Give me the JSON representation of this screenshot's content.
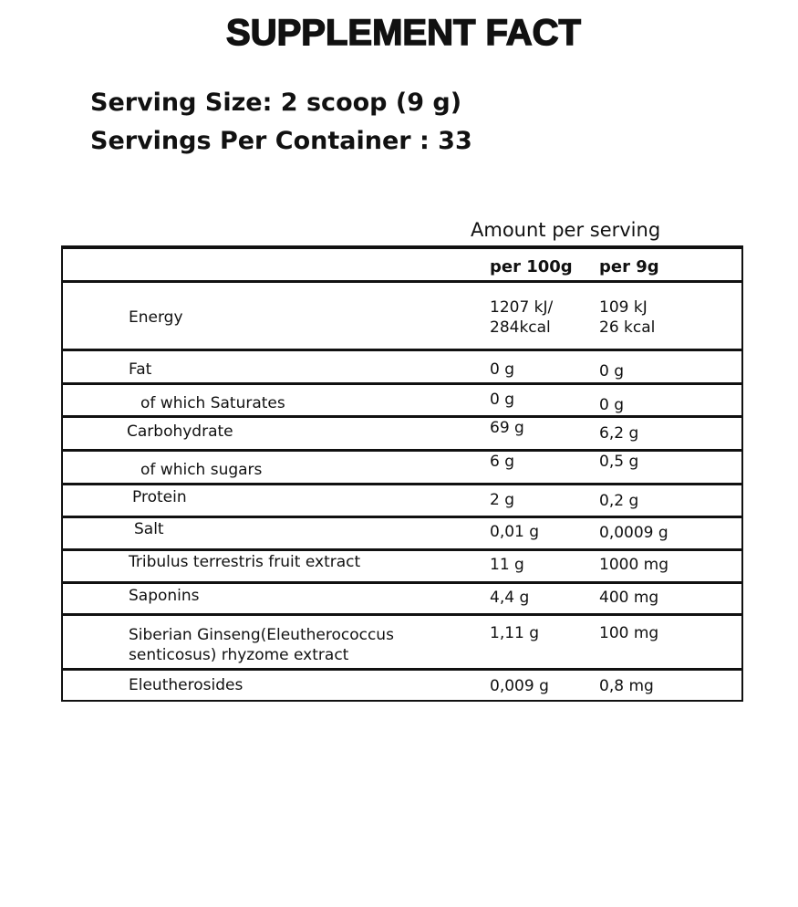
{
  "title": "SUPPLEMENT FACT",
  "serving_size": "Serving Size: 2 scoop (9 g)",
  "servings_per_container": "Servings Per Container : 33",
  "table": {
    "amount_header": "Amount per serving",
    "columns": [
      "per 100g",
      "per 9g"
    ],
    "rows": [
      {
        "label": "Energy",
        "per100": "1207 kJ/\n284kcal",
        "perServing": "109 kJ\n26 kcal"
      },
      {
        "label": "Fat",
        "per100": "0 g",
        "perServing": "0 g"
      },
      {
        "label": "of which Saturates",
        "per100": "0 g",
        "perServing": "0 g"
      },
      {
        "label": "Carbohydrate",
        "per100": "69 g",
        "perServing": "6,2 g"
      },
      {
        "label": "of which sugars",
        "per100": "6 g",
        "perServing": "0,5 g"
      },
      {
        "label": "Protein",
        "per100": "2 g",
        "perServing": "0,2 g"
      },
      {
        "label": "Salt",
        "per100": "0,01 g",
        "perServing": "0,0009 g"
      },
      {
        "label": "Tribulus terrestris fruit extract",
        "per100": "11 g",
        "perServing": "1000 mg"
      },
      {
        "label": "Saponins",
        "per100": "4,4 g",
        "perServing": "400 mg"
      },
      {
        "label": "Siberian Ginseng(Eleutherococcus\nsenticosus) rhyzome extract",
        "per100": "1,11 g",
        "perServing": "100 mg"
      },
      {
        "label": "Eleutherosides",
        "per100": "0,009 g",
        "perServing": "0,8 mg"
      }
    ]
  }
}
